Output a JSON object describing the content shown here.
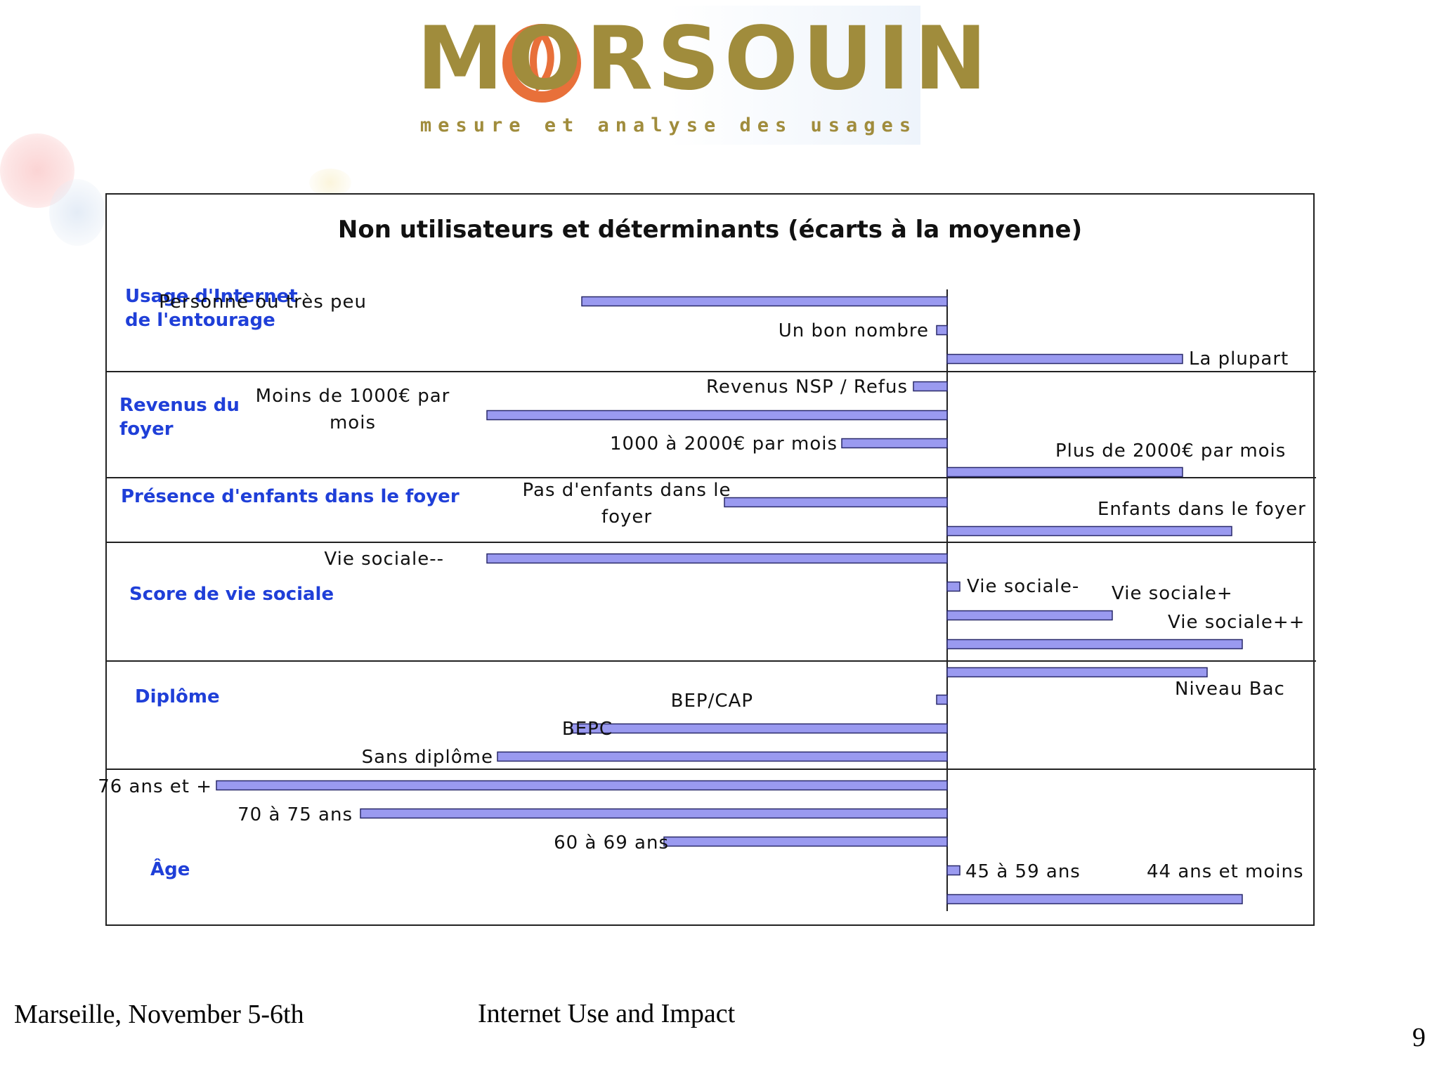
{
  "logo": {
    "name": "MORSOUIN",
    "tagline": "mesure et analyse des usages",
    "colors": {
      "text": "#a08c3c",
      "ring": "#e8703a"
    }
  },
  "footer": {
    "left": "Marseille, November 5-6th",
    "center": "Internet Use and Impact",
    "page_number": "9"
  },
  "colors": {
    "bar": "#9a9af0",
    "bar_stroke": "#2a2a6a",
    "group_label": "#1f3fd8"
  },
  "chart_data": {
    "type": "bar",
    "orientation": "horizontal",
    "title": "Non utilisateurs et déterminants (écarts à la moyenne)",
    "xlabel": "",
    "ylabel": "",
    "xlim": [
      -100,
      50
    ],
    "grid": false,
    "legend": "none",
    "groups": [
      {
        "label": "Usage d'Internet\nde l'entourage",
        "items": [
          {
            "label": "Personne ou très peu",
            "value": -52
          },
          {
            "label": "Un bon nombre",
            "value": -1.5
          },
          {
            "label": "La plupart",
            "value": 33.5
          }
        ]
      },
      {
        "label": "Revenus du\nfoyer",
        "items": [
          {
            "label": "Revenus NSP / Refus",
            "value": -4.8
          },
          {
            "label": "Moins de 1000€ par\nmois",
            "value": -65.5
          },
          {
            "label": "1000 à 2000€ par mois",
            "value": -15
          },
          {
            "label": "Plus de 2000€ par mois",
            "value": 33.5
          }
        ]
      },
      {
        "label": "Présence d'enfants dans le foyer",
        "items": [
          {
            "label": "Pas d'enfants dans le\nfoyer",
            "value": -31.7
          },
          {
            "label": "Enfants dans le foyer",
            "value": 40.5
          }
        ]
      },
      {
        "label": "Score de vie sociale",
        "items": [
          {
            "label": "Vie sociale--",
            "value": -65.5
          },
          {
            "label": "Vie sociale-",
            "value": 1.8
          },
          {
            "label": "Vie sociale+",
            "value": 23.5
          },
          {
            "label": "Vie sociale++",
            "value": 42
          }
        ]
      },
      {
        "label": "Diplôme",
        "items": [
          {
            "label": "Niveau Bac",
            "value": 37
          },
          {
            "label": "BEP/CAP",
            "value": -1.5
          },
          {
            "label": "BEPC",
            "value": -53.5
          },
          {
            "label": "Sans diplôme",
            "value": -64
          }
        ]
      },
      {
        "label": "Âge",
        "items": [
          {
            "label": "76 ans et +",
            "value": -104
          },
          {
            "label": "70 à 75 ans",
            "value": -83.5
          },
          {
            "label": "60 à 69 ans",
            "value": -40.3
          },
          {
            "label": "45 à 59 ans",
            "value": 1.8
          },
          {
            "label": "44 ans et moins",
            "value": 42
          }
        ]
      }
    ]
  }
}
